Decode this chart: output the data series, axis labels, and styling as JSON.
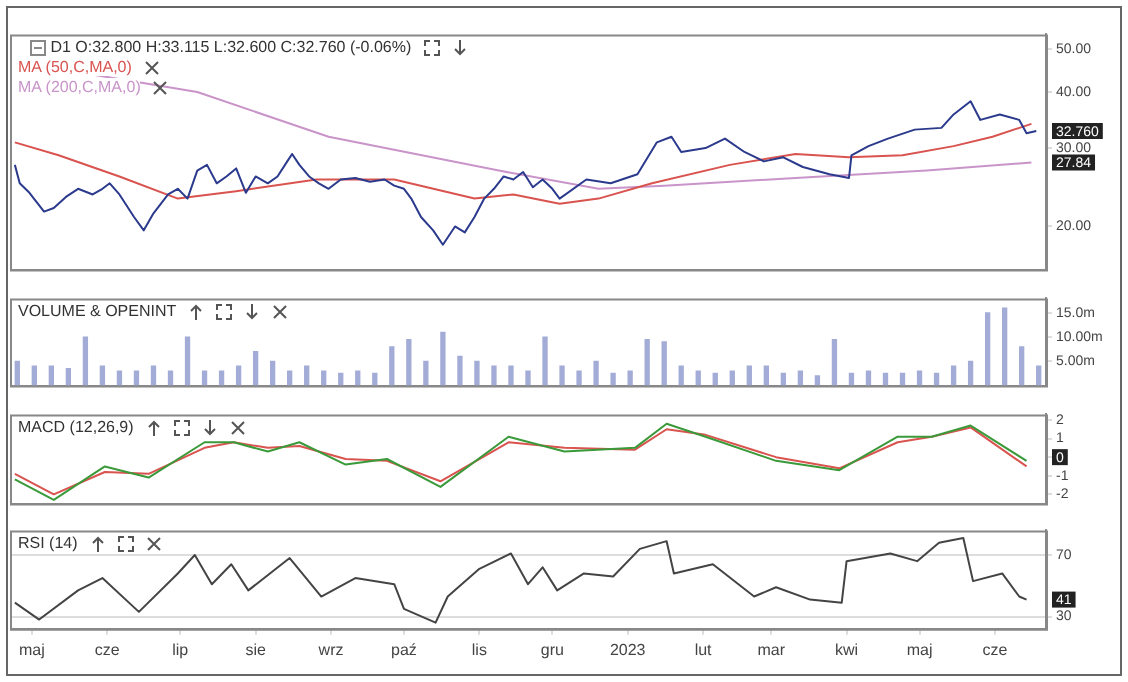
{
  "chart_data": [
    {
      "type": "line",
      "title": "D1 O:32.800 H:33.115 L:32.600 C:32.760 (-0.06%)",
      "legend": "top left",
      "log": true,
      "tick_labels": "y",
      "xlim": [
        "2022-04-22",
        "2023-06-22"
      ],
      "ylim": [
        16,
        54
      ],
      "yticks": [
        {
          "value": 20,
          "label": "20.00"
        },
        {
          "value": 30,
          "label": "30.00"
        },
        {
          "value": 40,
          "label": "40.00"
        },
        {
          "value": 50,
          "label": "50.00"
        }
      ],
      "x": [
        "2022-04-24",
        "2022-04-26",
        "2022-04-30",
        "2022-05-06",
        "2022-05-10",
        "2022-05-15",
        "2022-05-20",
        "2022-05-26",
        "2022-05-30",
        "2022-06-02",
        "2022-06-06",
        "2022-06-12",
        "2022-06-16",
        "2022-06-20",
        "2022-06-26",
        "2022-06-30",
        "2022-07-04",
        "2022-07-08",
        "2022-07-12",
        "2022-07-16",
        "2022-07-20",
        "2022-07-24",
        "2022-07-28",
        "2022-08-01",
        "2022-08-06",
        "2022-08-10",
        "2022-08-14",
        "2022-08-16",
        "2022-08-19",
        "2022-08-23",
        "2022-08-27",
        "2022-08-31",
        "2022-09-05",
        "2022-09-11",
        "2022-09-17",
        "2022-09-23",
        "2022-09-27",
        "2022-10-01",
        "2022-10-04",
        "2022-10-08",
        "2022-10-13",
        "2022-10-17",
        "2022-10-22",
        "2022-10-26",
        "2022-10-30",
        "2022-11-03",
        "2022-11-07",
        "2022-11-11",
        "2022-11-15",
        "2022-11-19",
        "2022-11-23",
        "2022-11-27",
        "2022-12-01",
        "2022-12-04",
        "2022-12-15",
        "2022-12-25",
        "2023-01-05",
        "2023-01-13",
        "2023-01-19",
        "2023-01-23",
        "2023-02-02",
        "2023-02-10",
        "2023-02-18",
        "2023-02-26",
        "2023-03-06",
        "2023-03-14",
        "2023-03-25",
        "2023-04-02",
        "2023-04-03",
        "2023-04-10",
        "2023-04-18",
        "2023-04-29",
        "2023-05-10",
        "2023-05-15",
        "2023-05-22",
        "2023-05-26",
        "2023-06-03",
        "2023-06-11",
        "2023-06-14",
        "2023-06-18"
      ],
      "series": [
        {
          "color": "#2b3a8c",
          "values": [
            27.5,
            25,
            23.8,
            21.6,
            22,
            23.3,
            24.3,
            23.6,
            24.3,
            25,
            23.6,
            21,
            19.6,
            21.4,
            23.6,
            24.3,
            23.1,
            26.7,
            27.5,
            25,
            25.9,
            27,
            23.8,
            25.9,
            25,
            25.9,
            28,
            29.1,
            27.5,
            25.9,
            25,
            24.3,
            25.5,
            25.7,
            25.2,
            25.5,
            24.7,
            24.3,
            23.1,
            21,
            19.6,
            18.2,
            20,
            19.4,
            21,
            23.1,
            24.3,
            25.9,
            25.5,
            26.5,
            24.5,
            25.5,
            24.3,
            23.1,
            25.5,
            25,
            26.2,
            30.9,
            31.8,
            29.4,
            30,
            31.5,
            29.4,
            28,
            28.6,
            27.2,
            26.2,
            25.7,
            28.9,
            30.3,
            31.5,
            33,
            33.3,
            35.7,
            38.2,
            34.7,
            35.7,
            34.7,
            32.4,
            32.76
          ]
        },
        {
          "name": "MA (50,C,MA,0)",
          "color": "#d9534f",
          "x": [
            "2022-04-24",
            "2022-05-12",
            "2022-06-06",
            "2022-06-30",
            "2022-07-24",
            "2022-08-26",
            "2022-09-27",
            "2022-10-30",
            "2022-11-15",
            "2022-12-04",
            "2022-12-20",
            "2023-01-11",
            "2023-02-12",
            "2023-03-11",
            "2023-04-02",
            "2023-04-24",
            "2023-05-15",
            "2023-05-31",
            "2023-06-16"
          ],
          "values": [
            30.9,
            28.9,
            25.9,
            23.1,
            24,
            25.5,
            25.5,
            23.1,
            23.6,
            22.5,
            23.1,
            25,
            27.5,
            29.1,
            28.6,
            28.9,
            30.3,
            31.8,
            34
          ]
        },
        {
          "name": "MA (200,C,MA,0)",
          "color": "#c994c9",
          "x": [
            "2022-04-26",
            "2022-07-08",
            "2022-08-31",
            "2022-11-09",
            "2022-12-20",
            "2023-01-16",
            "2023-03-11",
            "2023-04-07",
            "2023-05-04",
            "2023-06-16"
          ],
          "values": [
            46.7,
            40.1,
            31.8,
            26.7,
            24.3,
            24.7,
            25.7,
            26.2,
            26.7,
            27.84
          ]
        }
      ],
      "annotations": [
        {
          "text": "32.760",
          "y": 32.76
        },
        {
          "text": "27.84",
          "y": 27.84
        }
      ]
    },
    {
      "type": "bar",
      "title": "VOLUME & OPENINT",
      "tick_labels": "y",
      "color": "#a3acd6",
      "xlim": [
        "2022-04-22",
        "2023-06-22"
      ],
      "ylim": [
        0,
        18
      ],
      "yticks": [
        {
          "value": 5,
          "label": "5.00m"
        },
        {
          "value": 10,
          "label": "10.00m"
        },
        {
          "value": 15,
          "label": "15.0m"
        }
      ],
      "x": [
        "2022-04-25",
        "2022-05-02",
        "2022-05-09",
        "2022-05-16",
        "2022-05-23",
        "2022-05-30",
        "2022-06-06",
        "2022-06-13",
        "2022-06-20",
        "2022-06-27",
        "2022-07-04",
        "2022-07-11",
        "2022-07-18",
        "2022-07-25",
        "2022-08-01",
        "2022-08-08",
        "2022-08-15",
        "2022-08-22",
        "2022-08-29",
        "2022-09-05",
        "2022-09-12",
        "2022-09-19",
        "2022-09-26",
        "2022-10-03",
        "2022-10-10",
        "2022-10-17",
        "2022-10-24",
        "2022-10-31",
        "2022-11-07",
        "2022-11-14",
        "2022-11-21",
        "2022-11-28",
        "2022-12-05",
        "2022-12-12",
        "2022-12-19",
        "2022-12-26",
        "2023-01-02",
        "2023-01-09",
        "2023-01-16",
        "2023-01-23",
        "2023-01-30",
        "2023-02-06",
        "2023-02-13",
        "2023-02-20",
        "2023-02-27",
        "2023-03-06",
        "2023-03-13",
        "2023-03-20",
        "2023-03-27",
        "2023-04-03",
        "2023-04-10",
        "2023-04-17",
        "2023-04-24",
        "2023-05-01",
        "2023-05-08",
        "2023-05-15",
        "2023-05-22",
        "2023-05-29",
        "2023-06-05",
        "2023-06-12",
        "2023-06-19"
      ],
      "values": [
        5,
        4,
        4,
        3.5,
        10,
        4,
        3,
        3,
        4,
        3,
        10,
        3,
        3,
        4,
        7,
        5,
        3,
        4,
        3,
        2.5,
        3,
        2.5,
        8,
        9.5,
        5,
        11,
        6,
        5,
        4,
        4,
        3,
        10,
        4,
        3,
        5,
        2.5,
        3,
        9.5,
        9,
        4,
        3,
        2.5,
        3,
        4,
        4,
        2.5,
        3,
        2,
        9.5,
        2.5,
        3,
        2.5,
        2.5,
        3,
        2.5,
        4,
        5,
        15,
        16,
        8,
        4
      ]
    },
    {
      "type": "line",
      "title": "MACD (12,26,9)",
      "tick_labels": "y",
      "xlim": [
        "2022-04-22",
        "2023-06-22"
      ],
      "ylim": [
        -2.5,
        2.3
      ],
      "yticks": [
        -2,
        -1,
        {
          "value": 0,
          "label": null
        },
        1,
        2
      ],
      "x": [
        "2022-04-24",
        "2022-05-10",
        "2022-05-31",
        "2022-06-18",
        "2022-07-11",
        "2022-07-23",
        "2022-08-06",
        "2022-08-19",
        "2022-09-07",
        "2022-09-24",
        "2022-10-16",
        "2022-11-13",
        "2022-12-06",
        "2023-01-04",
        "2023-01-17",
        "2023-02-02",
        "2023-03-03",
        "2023-03-29",
        "2023-04-22",
        "2023-05-06",
        "2023-05-22",
        "2023-06-14"
      ],
      "series": [
        {
          "color": "#3a9a3a",
          "values": [
            -1.2,
            -2.3,
            -0.5,
            -1.1,
            0.8,
            0.8,
            0.3,
            0.8,
            -0.4,
            -0.1,
            -1.6,
            1.1,
            0.3,
            0.5,
            1.8,
            1.1,
            -0.2,
            -0.7,
            1.1,
            1.1,
            1.7,
            -0.2
          ]
        },
        {
          "color": "#d9534f",
          "values": [
            -0.9,
            -2,
            -0.8,
            -0.9,
            0.5,
            0.8,
            0.5,
            0.6,
            -0.1,
            -0.2,
            -1.3,
            0.8,
            0.5,
            0.4,
            1.5,
            1.2,
            0,
            -0.6,
            0.8,
            1.1,
            1.6,
            -0.5
          ]
        }
      ],
      "annotations": [
        {
          "text": "0",
          "y": 0
        }
      ]
    },
    {
      "type": "line",
      "title": "RSI (14)",
      "grid": "y",
      "color": "#444444",
      "xlim": [
        "2022-04-22",
        "2023-06-22"
      ],
      "xticks": [
        {
          "value": "2022-05-01",
          "label": "maj"
        },
        {
          "value": "2022-06-01",
          "label": "cze"
        },
        {
          "value": "2022-07-01",
          "label": "lip"
        },
        {
          "value": "2022-08-01",
          "label": "sie"
        },
        {
          "value": "2022-09-01",
          "label": "wrz"
        },
        {
          "value": "2022-10-01",
          "label": "paź"
        },
        {
          "value": "2022-11-01",
          "label": "lis"
        },
        {
          "value": "2022-12-01",
          "label": "gru"
        },
        {
          "value": "2023-01-01",
          "label": "2023"
        },
        {
          "value": "2023-02-01",
          "label": "lut"
        },
        {
          "value": "2023-03-01",
          "label": "mar"
        },
        {
          "value": "2023-04-01",
          "label": "kwi"
        },
        {
          "value": "2023-05-01",
          "label": "maj"
        },
        {
          "value": "2023-06-01",
          "label": "cze"
        }
      ],
      "ylim": [
        22,
        86
      ],
      "yticks": [
        30,
        70
      ],
      "x": [
        "2022-04-24",
        "2022-05-04",
        "2022-05-20",
        "2022-05-30",
        "2022-06-14",
        "2022-06-30",
        "2022-07-07",
        "2022-07-14",
        "2022-07-22",
        "2022-07-29",
        "2022-08-15",
        "2022-08-28",
        "2022-09-11",
        "2022-09-27",
        "2022-10-01",
        "2022-10-14",
        "2022-10-19",
        "2022-11-01",
        "2022-11-14",
        "2022-11-21",
        "2022-11-27",
        "2022-12-03",
        "2022-12-14",
        "2022-12-26",
        "2023-01-06",
        "2023-01-17",
        "2023-01-20",
        "2023-02-05",
        "2023-02-22",
        "2023-03-03",
        "2023-03-17",
        "2023-03-30",
        "2023-04-01",
        "2023-04-19",
        "2023-04-30",
        "2023-05-09",
        "2023-05-19",
        "2023-05-23",
        "2023-06-04",
        "2023-06-11",
        "2023-06-14"
      ],
      "values": [
        39,
        28,
        47,
        55,
        33,
        58,
        70,
        51,
        64,
        47,
        68,
        43,
        55,
        51,
        35,
        26,
        43,
        61,
        71,
        51,
        62,
        47,
        58,
        56,
        74,
        79,
        58,
        64,
        43,
        49,
        41,
        39,
        66,
        71,
        66,
        78,
        81,
        53,
        58,
        43,
        41
      ],
      "annotations": [
        {
          "text": "41",
          "y": 41
        }
      ]
    }
  ]
}
